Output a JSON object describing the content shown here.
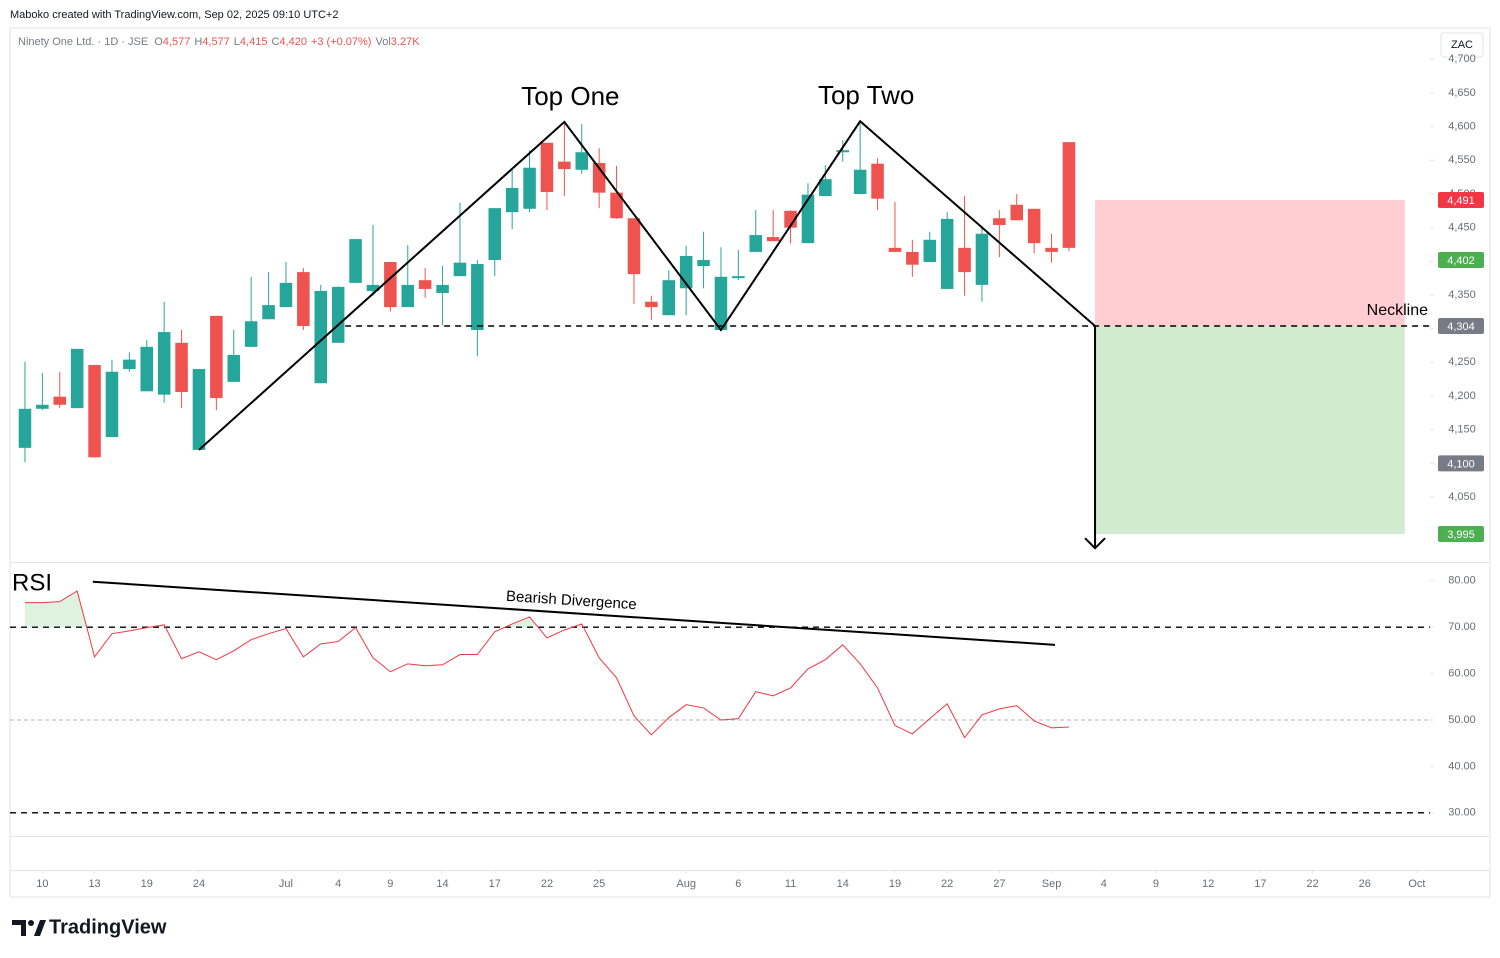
{
  "chart_data": {
    "type": "candlestick",
    "attribution": "Maboko created with TradingView.com, Sep 02, 2025 09:10 UTC+2",
    "legend": {
      "symbol": "Ninety One Ltd. · 1D · JSE",
      "ohlc": [
        {
          "key": "O",
          "value": "4,577"
        },
        {
          "key": "H",
          "value": "4,577"
        },
        {
          "key": "L",
          "value": "4,415"
        },
        {
          "key": "C",
          "value": "4,420"
        }
      ],
      "change": "+3 (+0.07%)",
      "volume_key": "Vol",
      "volume": "3.27K"
    },
    "currency": "ZAC",
    "up_color": "#26a69a",
    "down_color": "#ef5350",
    "candles": [
      [
        4123,
        4251,
        4102,
        4181
      ],
      [
        4181,
        4234,
        4179,
        4187
      ],
      [
        4199,
        4236,
        4182,
        4187
      ],
      [
        4182,
        4270,
        4182,
        4270
      ],
      [
        4246,
        4246,
        4109,
        4109
      ],
      [
        4139,
        4254,
        4139,
        4236
      ],
      [
        4240,
        4265,
        4236,
        4254
      ],
      [
        4207,
        4283,
        4207,
        4273
      ],
      [
        4202,
        4340,
        4190,
        4295
      ],
      [
        4279,
        4298,
        4182,
        4206
      ],
      [
        4120,
        4240,
        4120,
        4240
      ],
      [
        4319,
        4319,
        4179,
        4197
      ],
      [
        4221,
        4298,
        4221,
        4261
      ],
      [
        4273,
        4377,
        4273,
        4311
      ],
      [
        4314,
        4384,
        4314,
        4335
      ],
      [
        4332,
        4399,
        4332,
        4368
      ],
      [
        4384,
        4390,
        4298,
        4304
      ],
      [
        4219,
        4365,
        4219,
        4356
      ],
      [
        4279,
        4363,
        4279,
        4362
      ],
      [
        4368,
        4433,
        4368,
        4433
      ],
      [
        4356,
        4454,
        4349,
        4365
      ],
      [
        4399,
        4399,
        4326,
        4332
      ],
      [
        4332,
        4424,
        4332,
        4365
      ],
      [
        4372,
        4390,
        4346,
        4359
      ],
      [
        4353,
        4393,
        4305,
        4365
      ],
      [
        4378,
        4487,
        4378,
        4398
      ],
      [
        4298,
        4402,
        4259,
        4396
      ],
      [
        4402,
        4479,
        4378,
        4479
      ],
      [
        4473,
        4536,
        4448,
        4509
      ],
      [
        4478,
        4565,
        4473,
        4539
      ],
      [
        4576,
        4576,
        4476,
        4503
      ],
      [
        4548,
        4607,
        4497,
        4537
      ],
      [
        4536,
        4604,
        4530,
        4562
      ],
      [
        4546,
        4568,
        4479,
        4502
      ],
      [
        4502,
        4542,
        4463,
        4464
      ],
      [
        4464,
        4464,
        4337,
        4381
      ],
      [
        4340,
        4349,
        4313,
        4332
      ],
      [
        4320,
        4387,
        4320,
        4372
      ],
      [
        4360,
        4423,
        4320,
        4408
      ],
      [
        4393,
        4444,
        4360,
        4402
      ],
      [
        4298,
        4421,
        4298,
        4377
      ],
      [
        4375,
        4417,
        4372,
        4378
      ],
      [
        4414,
        4476,
        4414,
        4439
      ],
      [
        4436,
        4476,
        4430,
        4430
      ],
      [
        4475,
        4476,
        4427,
        4450
      ],
      [
        4427,
        4516,
        4427,
        4499
      ],
      [
        4497,
        4543,
        4497,
        4522
      ],
      [
        4562,
        4580,
        4548,
        4565
      ],
      [
        4500,
        4608,
        4500,
        4536
      ],
      [
        4545,
        4553,
        4476,
        4493
      ],
      [
        4420,
        4488,
        4414,
        4414
      ],
      [
        4414,
        4432,
        4377,
        4395
      ],
      [
        4399,
        4444,
        4399,
        4432
      ],
      [
        4359,
        4473,
        4359,
        4463
      ],
      [
        4420,
        4497,
        4349,
        4384
      ],
      [
        4365,
        4452,
        4340,
        4441
      ],
      [
        4464,
        4476,
        4406,
        4454
      ],
      [
        4484,
        4500,
        4461,
        4461
      ],
      [
        4478,
        4478,
        4412,
        4427
      ],
      [
        4420,
        4441,
        4398,
        4414
      ],
      [
        4577,
        4577,
        4415,
        4420
      ]
    ],
    "xlim": [
      -0.86,
      80.75
    ],
    "xticks": [
      {
        "value": 1,
        "label": "10"
      },
      {
        "value": 4,
        "label": "13"
      },
      {
        "value": 7,
        "label": "19"
      },
      {
        "value": 10,
        "label": "24"
      },
      {
        "value": 15,
        "label": "Jul"
      },
      {
        "value": 18,
        "label": "4"
      },
      {
        "value": 21,
        "label": "9"
      },
      {
        "value": 24,
        "label": "14"
      },
      {
        "value": 27,
        "label": "17"
      },
      {
        "value": 30,
        "label": "22"
      },
      {
        "value": 33,
        "label": "25"
      },
      {
        "value": 38,
        "label": "Aug"
      },
      {
        "value": 41,
        "label": "6"
      },
      {
        "value": 44,
        "label": "11"
      },
      {
        "value": 47,
        "label": "14"
      },
      {
        "value": 50,
        "label": "19"
      },
      {
        "value": 53,
        "label": "22"
      },
      {
        "value": 56,
        "label": "27"
      },
      {
        "value": 59,
        "label": "Sep"
      },
      {
        "value": 62,
        "label": "4"
      },
      {
        "value": 65,
        "label": "9"
      },
      {
        "value": 68,
        "label": "12"
      },
      {
        "value": 71,
        "label": "17"
      },
      {
        "value": 74,
        "label": "22"
      },
      {
        "value": 77,
        "label": "26"
      },
      {
        "value": 80,
        "label": "Oct"
      }
    ],
    "ylim": [
      3953.5,
      4746.5
    ],
    "yticks": [
      {
        "value": 4050,
        "label": "4,050"
      },
      {
        "value": 4100,
        "label": "4,100"
      },
      {
        "value": 4150,
        "label": "4,150"
      },
      {
        "value": 4200,
        "label": "4,200"
      },
      {
        "value": 4250,
        "label": "4,250"
      },
      {
        "value": 4300,
        "label": "4,300"
      },
      {
        "value": 4350,
        "label": "4,350"
      },
      {
        "value": 4400,
        "label": "4,400"
      },
      {
        "value": 4450,
        "label": "4,450"
      },
      {
        "value": 4500,
        "label": "4,500"
      },
      {
        "value": 4550,
        "label": "4,550"
      },
      {
        "value": 4600,
        "label": "4,600"
      },
      {
        "value": 4650,
        "label": "4,650"
      },
      {
        "value": 4700,
        "label": "4,700"
      }
    ],
    "grid": false,
    "price_labels": [
      {
        "value": 4491,
        "label": "4,491",
        "color": "#f23645"
      },
      {
        "value": 4402,
        "label": "4,402",
        "color": "#4caf50"
      },
      {
        "value": 4304,
        "label": "4,304",
        "color": "#787b86"
      },
      {
        "value": 4100,
        "label": "4,100",
        "color": "#787b86"
      },
      {
        "value": 3995,
        "label": "3,995",
        "color": "#4caf50"
      }
    ],
    "annotations": [
      {
        "text": "Top One",
        "x": 31,
        "y": 4607
      },
      {
        "text": "Top Two",
        "x": 48,
        "y": 4608
      }
    ],
    "zigzag": {
      "x": [
        10,
        31,
        40,
        48,
        61.5
      ],
      "y": [
        4120,
        4607,
        4298,
        4608,
        4304
      ],
      "color": "#000000"
    },
    "neckline": {
      "label": "Neckline",
      "value": 4304,
      "x_start": 18.4
    },
    "risk_box": {
      "x": [
        61.5,
        79.3
      ],
      "top": 4491,
      "bottom": 4304,
      "color": "#ffcdd2"
    },
    "reward_box": {
      "x": [
        61.5,
        79.3
      ],
      "top": 4304,
      "bottom": 3995,
      "color": "#d1ebd0"
    },
    "target_arrow": {
      "x": 61.5,
      "from": 4304,
      "to": 3974
    },
    "rsi": {
      "title": "RSI",
      "color": "#f23645",
      "values": [
        75.3,
        75.3,
        75.5,
        77.8,
        63.6,
        68.6,
        69.2,
        69.9,
        70.5,
        63.2,
        64.7,
        63.0,
        64.9,
        67.3,
        68.6,
        69.7,
        63.6,
        66.4,
        66.9,
        69.9,
        63.4,
        60.4,
        62.1,
        61.7,
        61.9,
        64.1,
        64.1,
        69.0,
        70.7,
        72.2,
        67.7,
        69.4,
        70.7,
        63.4,
        59.1,
        50.9,
        46.8,
        50.5,
        53.3,
        52.6,
        50.0,
        50.3,
        56.1,
        55.2,
        56.9,
        61.0,
        63.0,
        66.2,
        62.1,
        56.9,
        48.8,
        47.0,
        50.3,
        53.5,
        46.2,
        51.1,
        52.4,
        53.1,
        49.8,
        48.3,
        48.5
      ],
      "ylim": [
        25,
        83.4
      ],
      "yticks": [
        {
          "value": 30,
          "label": "30.00"
        },
        {
          "value": 40,
          "label": "40.00"
        },
        {
          "value": 50,
          "label": "50.00"
        },
        {
          "value": 60,
          "label": "60.00"
        },
        {
          "value": 70,
          "label": "70.00"
        },
        {
          "value": 80,
          "label": "80.00"
        }
      ],
      "bands": [
        30,
        70
      ],
      "middle": 50,
      "divergence": {
        "label": "Bearish Divergence",
        "x": [
          3.9,
          59.2
        ],
        "y": [
          79.8,
          66.2
        ]
      }
    },
    "branding": "TradingView"
  }
}
